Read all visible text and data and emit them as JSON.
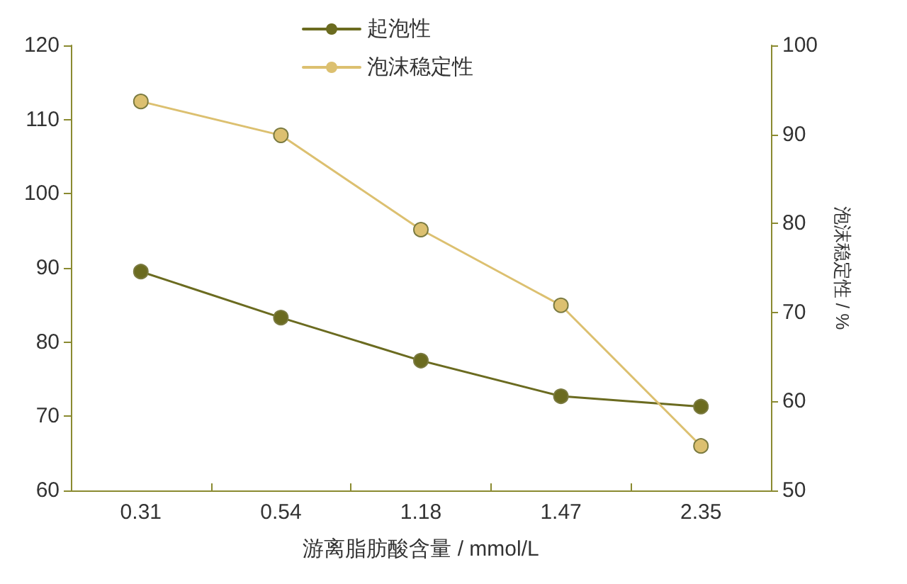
{
  "chart_data": {
    "type": "line",
    "xlabel": "游离脂肪酸含量 / mmol/L",
    "y2label": "泡沫稳定性 / %",
    "categories": [
      "0.31",
      "0.54",
      "1.18",
      "1.47",
      "2.35"
    ],
    "series": [
      {
        "name": "起泡性",
        "color": "#6b6b20",
        "values": [
          89.5,
          83.3,
          77.5,
          72.7,
          71.3
        ]
      },
      {
        "name": "泡沫稳定性",
        "color": "#dcc070",
        "axis": "y2",
        "values": [
          93.7,
          89.9,
          79.3,
          70.8,
          55
        ]
      }
    ],
    "ylim": [
      60,
      120
    ],
    "yticks": [
      60,
      70,
      80,
      90,
      100,
      110,
      120
    ],
    "y2lim": [
      50,
      100
    ],
    "y2ticks": [
      50,
      60,
      70,
      80,
      90,
      100
    ],
    "marker": "circle",
    "line_style": "solid",
    "grid": false,
    "legend": "top"
  }
}
